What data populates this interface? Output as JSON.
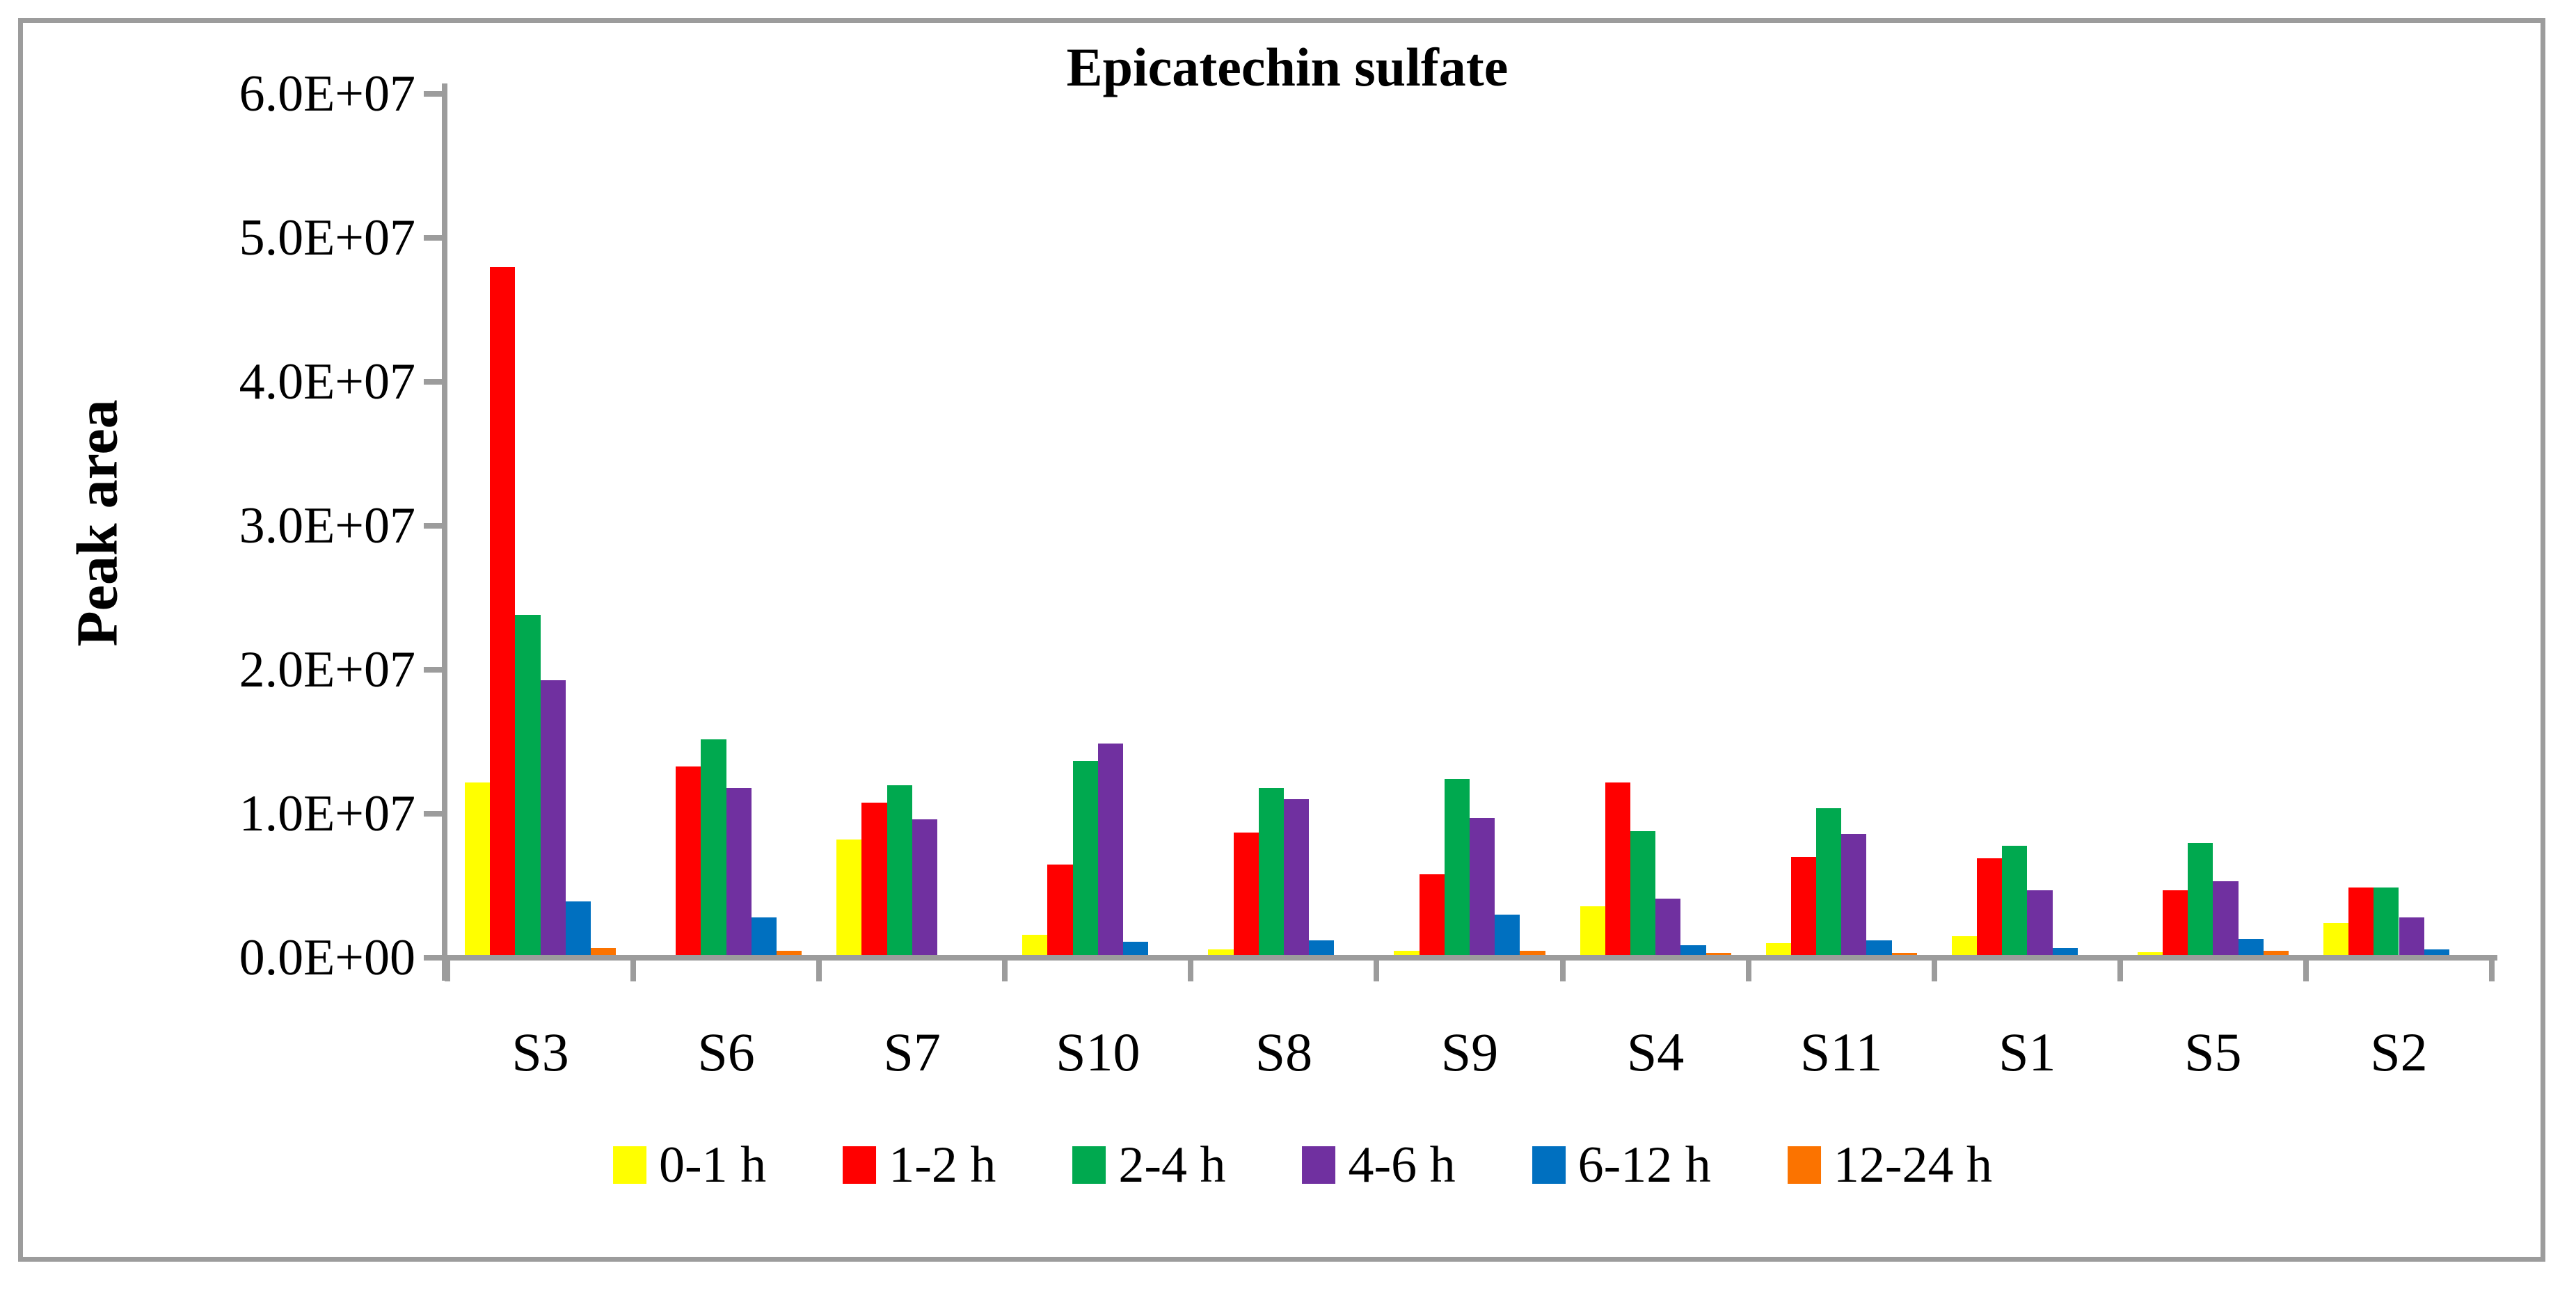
{
  "chart": {
    "title": "Epicatechin sulfate",
    "y_axis": {
      "title": "Peak area",
      "tick_labels": [
        "0.0E+00",
        "1.0E+07",
        "2.0E+07",
        "3.0E+07",
        "4.0E+07",
        "5.0E+07",
        "6.0E+07"
      ]
    },
    "colors": {
      "axis_gray": "#9c9c9c",
      "frame_gray": "#9c9c9c",
      "text": "#000000"
    }
  },
  "chart_data": {
    "type": "bar",
    "title": "Epicatechin sulfate",
    "xlabel": "",
    "ylabel": "Peak area",
    "ylim": [
      0,
      60000000
    ],
    "y_tick_step": 10000000,
    "grid": false,
    "legend_position": "bottom",
    "categories": [
      "S3",
      "S6",
      "S7",
      "S10",
      "S8",
      "S9",
      "S4",
      "S11",
      "S1",
      "S5",
      "S2"
    ],
    "series": [
      {
        "name": "0-1 h",
        "color": "#FFFF00",
        "values": [
          12000000,
          0,
          8000000,
          1400000,
          400000,
          300000,
          3400000,
          800000,
          1300000,
          200000,
          2200000
        ]
      },
      {
        "name": "1-2 h",
        "color": "#FF0000",
        "values": [
          47800000,
          13100000,
          10600000,
          6300000,
          8500000,
          5600000,
          12000000,
          6800000,
          6700000,
          4500000,
          4700000
        ]
      },
      {
        "name": "2-4 h",
        "color": "#00A94F",
        "values": [
          23600000,
          15000000,
          11800000,
          13500000,
          11600000,
          12200000,
          8600000,
          10200000,
          7600000,
          7800000,
          4700000
        ]
      },
      {
        "name": "4-6 h",
        "color": "#7030A0",
        "values": [
          19100000,
          11600000,
          9400000,
          14700000,
          10800000,
          9500000,
          3900000,
          8400000,
          4500000,
          5100000,
          2600000
        ]
      },
      {
        "name": "6-12 h",
        "color": "#0070C0",
        "values": [
          3700000,
          2600000,
          0,
          900000,
          1000000,
          2800000,
          700000,
          1000000,
          500000,
          1100000,
          400000
        ]
      },
      {
        "name": "12-24 h",
        "color": "#FB7300",
        "values": [
          500000,
          300000,
          0,
          0,
          0,
          300000,
          150000,
          150000,
          0,
          300000,
          0
        ]
      }
    ]
  }
}
